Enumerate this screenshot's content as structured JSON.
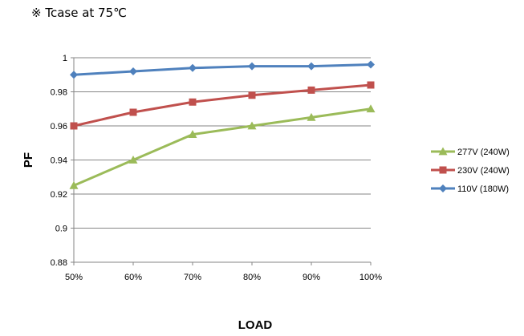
{
  "note": "※ Tcase at 75℃",
  "chart_data": {
    "type": "line",
    "categories": [
      "50%",
      "60%",
      "70%",
      "80%",
      "90%",
      "100%"
    ],
    "xlabel": "LOAD",
    "ylabel": "PF",
    "ylim": [
      0.88,
      1
    ],
    "yticks": [
      0.88,
      0.9,
      0.92,
      0.94,
      0.96,
      0.98,
      1
    ],
    "ytick_labels": [
      "0.88",
      "0.9",
      "0.92",
      "0.94",
      "0.96",
      "0.98",
      "1"
    ],
    "grid": true,
    "legend_position": "right",
    "series": [
      {
        "name": "277V (240W)",
        "color": "#9bbb59",
        "marker": "triangle",
        "values": [
          0.925,
          0.94,
          0.955,
          0.96,
          0.965,
          0.97
        ]
      },
      {
        "name": "230V (240W)",
        "color": "#c0504d",
        "marker": "square",
        "values": [
          0.96,
          0.968,
          0.974,
          0.978,
          0.981,
          0.984
        ]
      },
      {
        "name": "110V (180W)",
        "color": "#4f81bd",
        "marker": "diamond",
        "values": [
          0.99,
          0.992,
          0.994,
          0.995,
          0.995,
          0.996
        ]
      }
    ]
  }
}
